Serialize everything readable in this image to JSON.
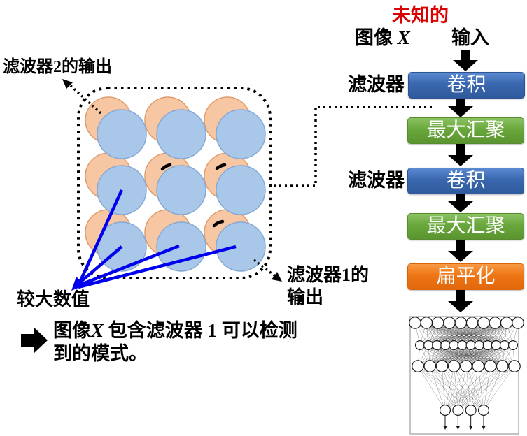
{
  "header": {
    "unknown": "未知的",
    "image_word": "图像",
    "x_var": "X",
    "input": "输入"
  },
  "pipeline": [
    {
      "label": "卷积"
    },
    {
      "label": "最大汇聚"
    },
    {
      "label": "卷积"
    },
    {
      "label": "最大汇聚"
    },
    {
      "label": "扁平化"
    }
  ],
  "side_labels": [
    "滤波器",
    "滤波器"
  ],
  "annotations": {
    "filter2_output": "滤波器2的输出",
    "filter1_output": "滤波器1的\n输出",
    "larger_values": "较大数值",
    "conclusion_p1": "图像",
    "conclusion_x": "X",
    "conclusion_p2": " 包含滤波器 1 可以检测",
    "conclusion_line2": "到的模式。"
  },
  "colors": {
    "accent_red": "#dd0000",
    "box_blue": "#3a67ae",
    "box_green": "#69a73c",
    "box_orange": "#ee7514",
    "circle_orange_fill": "#f7c7a3",
    "circle_blue_fill": "#a9c7e9",
    "arrow_blue": "#0000ee"
  },
  "nn": {
    "layers": [
      10,
      12,
      9,
      4
    ]
  }
}
